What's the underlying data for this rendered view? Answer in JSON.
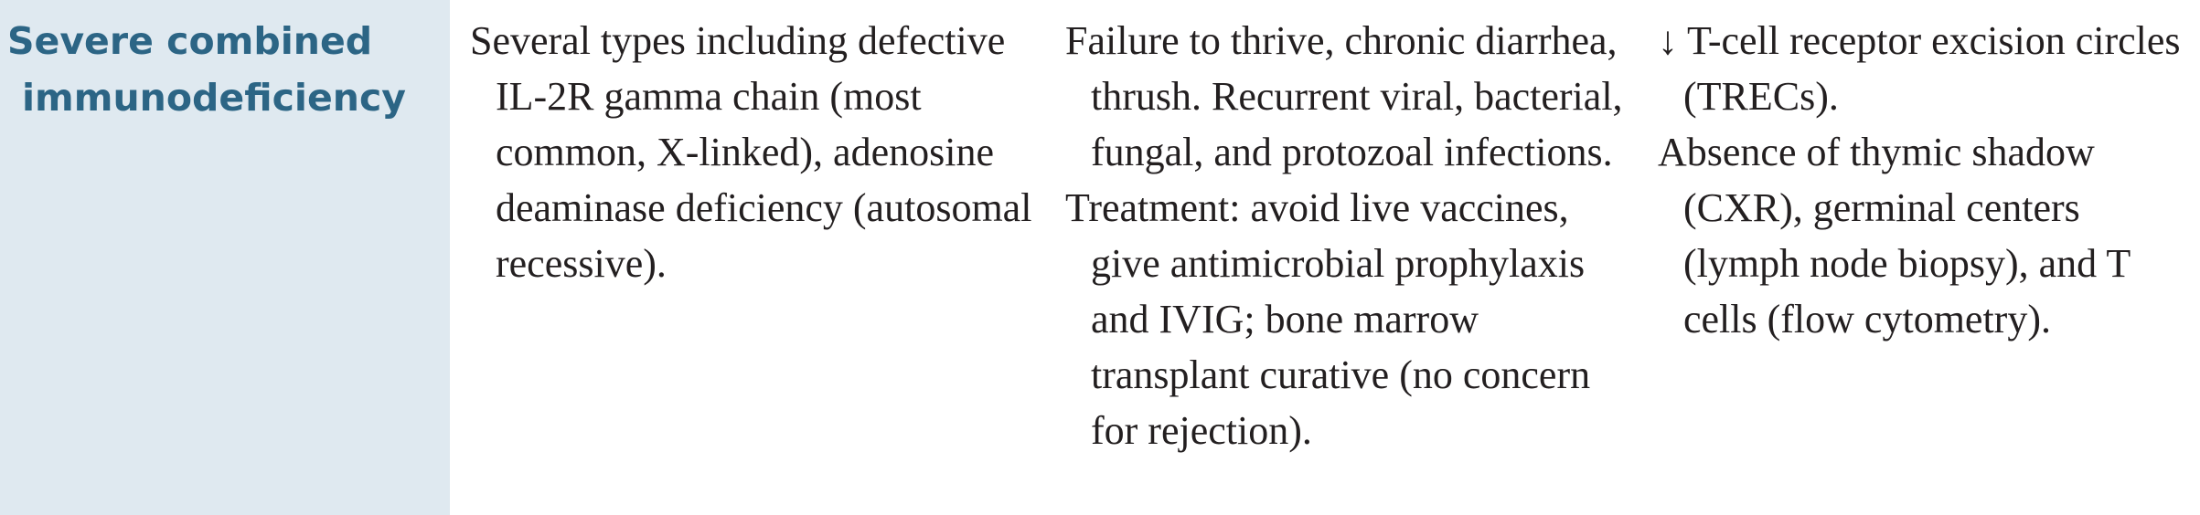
{
  "row": {
    "label_line1": "Severe combined",
    "label_line2": "immunodeficiency",
    "defect": "Several types including defective IL-2R gamma chain (most common, X-linked), adenosine deaminase deficiency (autosomal recessive).",
    "presentation": "Failure to thrive, chronic diarrhea, thrush. Recurrent viral, bacterial, fungal, and protozoal infections.",
    "treatment": "Treatment: avoid live vaccines, give antimicrobial prophylaxis and IVIG; bone marrow transplant curative (no concern for rejection).",
    "finding1_arrow": "↓",
    "finding1": "T-cell receptor excision circles (TRECs).",
    "finding2": "Absence of thymic shadow (CXR), germinal centers (lymph node biopsy), and T cells (flow cytometry)."
  },
  "colors": {
    "label_background": "#dfe9f0",
    "label_text": "#2c6585",
    "body_text": "#231f20"
  }
}
